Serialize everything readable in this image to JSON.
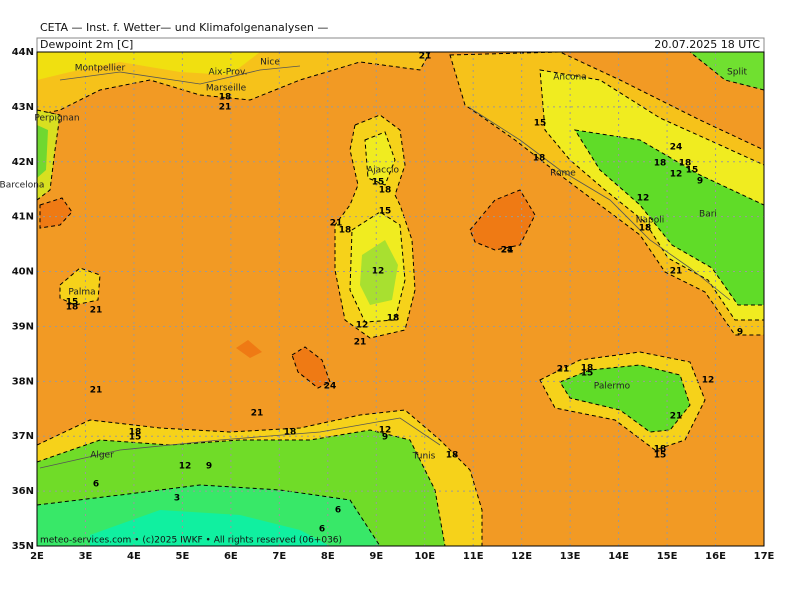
{
  "header": {
    "institute": "CETA — Inst. f. Wetter— und Klimafolgenanalysen —",
    "field": "Dewpoint 2m [C]",
    "valid_time": "20.07.2025 18 UTC"
  },
  "map": {
    "lonlim": [
      2,
      17
    ],
    "latlim": [
      35,
      44
    ],
    "lon_ticks": [
      {
        "value": 2,
        "label": "2E"
      },
      {
        "value": 3,
        "label": "3E"
      },
      {
        "value": 4,
        "label": "4E"
      },
      {
        "value": 5,
        "label": "5E"
      },
      {
        "value": 6,
        "label": "6E"
      },
      {
        "value": 7,
        "label": "7E"
      },
      {
        "value": 8,
        "label": "8E"
      },
      {
        "value": 9,
        "label": "9E"
      },
      {
        "value": 10,
        "label": "10E"
      },
      {
        "value": 11,
        "label": "11E"
      },
      {
        "value": 12,
        "label": "12E"
      },
      {
        "value": 13,
        "label": "13E"
      },
      {
        "value": 14,
        "label": "14E"
      },
      {
        "value": 15,
        "label": "15E"
      },
      {
        "value": 16,
        "label": "16E"
      },
      {
        "value": 17,
        "label": "17E"
      }
    ],
    "lat_ticks": [
      {
        "value": 35,
        "label": "35N"
      },
      {
        "value": 36,
        "label": "36N"
      },
      {
        "value": 37,
        "label": "37N"
      },
      {
        "value": 38,
        "label": "38N"
      },
      {
        "value": 39,
        "label": "39N"
      },
      {
        "value": 40,
        "label": "40N"
      },
      {
        "value": 41,
        "label": "41N"
      },
      {
        "value": 42,
        "label": "42N"
      },
      {
        "value": 43,
        "label": "43N"
      },
      {
        "value": 44,
        "label": "44N"
      }
    ],
    "cities": [
      "Montpellier",
      "Aix-Prov.",
      "Nice",
      "Marseille",
      "Perpignan",
      "Barcelona",
      "Ajaccio",
      "Rome",
      "Ancona",
      "Split",
      "Napoli",
      "Bari",
      "Palermo",
      "Tunis",
      "Alger",
      "Palma"
    ],
    "contour_labels": [
      21,
      21,
      18,
      21,
      18,
      15,
      18,
      15,
      21,
      18,
      12,
      12,
      18,
      21,
      15,
      18,
      21,
      24,
      15,
      18,
      24,
      18,
      15,
      12,
      9,
      12,
      18,
      21,
      9,
      12,
      21,
      18,
      15,
      24,
      21,
      21,
      18,
      12,
      9,
      18,
      18,
      15,
      9,
      12,
      6,
      3,
      6,
      6,
      21,
      18,
      15
    ]
  },
  "footer": "meteo-services.com • (c)2025 IWKF • All rights reserved (06+036)"
}
